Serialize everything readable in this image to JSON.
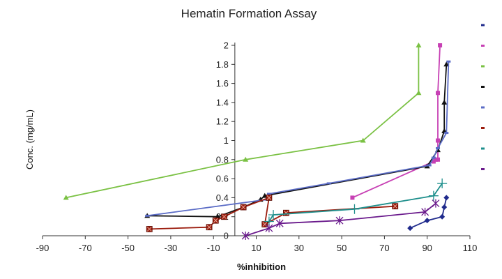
{
  "chart_data": {
    "type": "scatter",
    "title": "Hematin Formation Assay",
    "xlabel": "%inhibition",
    "ylabel": "Conc. (mg/mL)",
    "xlim": [
      -90,
      110
    ],
    "ylim": [
      0,
      2
    ],
    "x_ticks": [
      "-90",
      "-70",
      "-50",
      "-30",
      "-10",
      "10",
      "30",
      "50",
      "70",
      "90",
      "110"
    ],
    "y_ticks": [
      "0",
      "0.2",
      "0.4",
      "0.6",
      "0.8",
      "1",
      "1.2",
      "1.4",
      "1.6",
      "1.8",
      "2"
    ],
    "grid": false,
    "legend": "right",
    "series": [
      {
        "color": "#1f2a8c",
        "marker": "diamond",
        "points": [
          [
            82,
            0.08
          ],
          [
            90,
            0.16
          ],
          [
            97,
            0.2
          ],
          [
            98,
            0.3
          ],
          [
            99,
            0.4
          ]
        ]
      },
      {
        "color": "#c740b4",
        "marker": "square",
        "points": [
          [
            55,
            0.4
          ],
          [
            93,
            0.78
          ],
          [
            94,
            0.8
          ],
          [
            95,
            0.8
          ],
          [
            95,
            1.0
          ],
          [
            95,
            1.5
          ],
          [
            96,
            2.0
          ]
        ]
      },
      {
        "color": "#7ac143",
        "marker": "triangle",
        "points": [
          [
            -79,
            0.4
          ],
          [
            5,
            0.8
          ],
          [
            60,
            1.0
          ],
          [
            86,
            1.5
          ],
          [
            86,
            2.0
          ]
        ]
      },
      {
        "color": "#111111",
        "marker": "triangle",
        "points": [
          [
            -41,
            0.21
          ],
          [
            -8,
            0.2
          ],
          [
            4,
            0.3
          ],
          [
            12,
            0.38
          ],
          [
            14,
            0.42
          ],
          [
            90,
            0.73
          ],
          [
            95,
            0.9
          ],
          [
            98,
            1.1
          ],
          [
            98,
            1.4
          ],
          [
            99,
            1.8
          ]
        ]
      },
      {
        "color": "#5b6cc6",
        "marker": "dash",
        "points": [
          [
            -41,
            0.21
          ],
          [
            15,
            0.38
          ],
          [
            16,
            0.44
          ],
          [
            44,
            0.55
          ],
          [
            91,
            0.74
          ],
          [
            93,
            0.82
          ],
          [
            95,
            0.92
          ],
          [
            99,
            1.08
          ],
          [
            100,
            1.83
          ]
        ]
      },
      {
        "color": "#9b1b0c",
        "marker": "square-x",
        "points": [
          [
            -40,
            0.07
          ],
          [
            -12,
            0.09
          ],
          [
            -9,
            0.16
          ],
          [
            -5,
            0.2
          ],
          [
            4,
            0.3
          ],
          [
            16,
            0.4
          ],
          [
            14,
            0.12
          ],
          [
            24,
            0.24
          ],
          [
            75,
            0.31
          ]
        ]
      },
      {
        "color": "#1e8f8c",
        "marker": "plus",
        "points": [
          [
            16,
            0.15
          ],
          [
            18,
            0.22
          ],
          [
            56,
            0.28
          ],
          [
            93,
            0.42
          ],
          [
            97,
            0.55
          ]
        ]
      },
      {
        "color": "#6a1a8c",
        "marker": "star",
        "points": [
          [
            5,
            0.0
          ],
          [
            16,
            0.08
          ],
          [
            21,
            0.13
          ],
          [
            49,
            0.16
          ],
          [
            89,
            0.25
          ],
          [
            94,
            0.34
          ]
        ]
      }
    ]
  }
}
